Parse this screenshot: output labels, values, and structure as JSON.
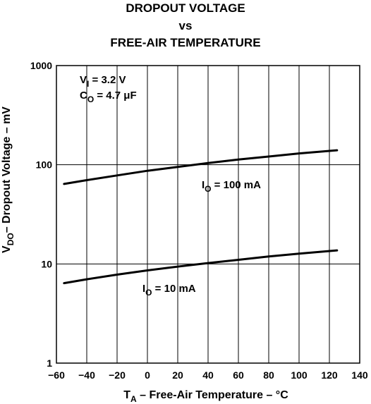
{
  "title_lines": [
    "DROPOUT VOLTAGE",
    "vs",
    "FREE-AIR TEMPERATURE"
  ],
  "chart_data": {
    "type": "line",
    "x_scale": "linear",
    "y_scale": "log",
    "xlim": [
      -60,
      140
    ],
    "ylim": [
      1,
      1000
    ],
    "x_ticks": [
      -60,
      -40,
      -20,
      0,
      20,
      40,
      60,
      80,
      100,
      120,
      140
    ],
    "y_ticks": [
      1,
      10,
      100,
      1000
    ],
    "grid": true,
    "xlabel": {
      "main": "T",
      "sub": "A",
      "rest": " – Free-Air Temperature – °C"
    },
    "ylabel": {
      "main": "V",
      "sub": "DO",
      "rest": "– Dropout Voltage – mV"
    },
    "conditions": [
      {
        "main": "V",
        "sub": "I",
        "rest": " = 3.2 V"
      },
      {
        "main": "C",
        "sub": "O",
        "rest": " = 4.7 μF"
      }
    ],
    "series": [
      {
        "name": {
          "main": "I",
          "sub": "O",
          "rest": " = 100 mA"
        },
        "x": [
          -55,
          -40,
          -20,
          0,
          20,
          40,
          60,
          80,
          100,
          125
        ],
        "y": [
          64,
          70,
          78,
          87,
          95,
          104,
          113,
          121,
          130,
          140
        ]
      },
      {
        "name": {
          "main": "I",
          "sub": "O",
          "rest": " = 10 mA"
        },
        "x": [
          -55,
          -40,
          -20,
          0,
          20,
          40,
          60,
          80,
          100,
          125
        ],
        "y": [
          6.4,
          7.0,
          7.8,
          8.6,
          9.4,
          10.2,
          11.0,
          11.9,
          12.7,
          13.7
        ]
      }
    ]
  }
}
